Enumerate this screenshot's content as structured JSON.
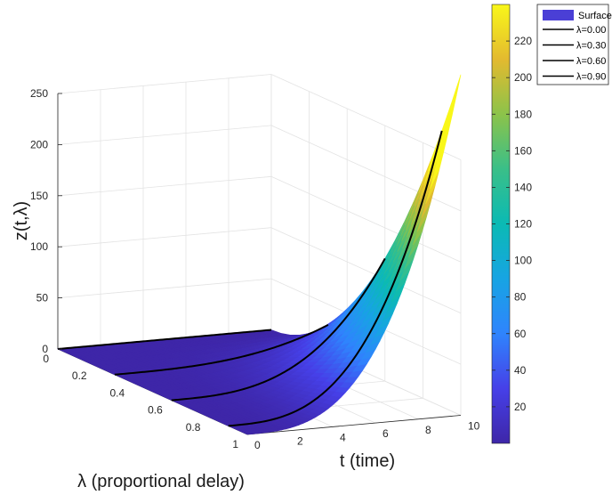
{
  "chart_data": {
    "type": "surface",
    "xlabel": "t (time)",
    "ylabel": "λ (proportional delay)",
    "zlabel": "z(t,λ)",
    "xlim": [
      0,
      10
    ],
    "ylim": [
      0,
      1
    ],
    "zlim": [
      0,
      250
    ],
    "x_ticks": [
      "0",
      "2",
      "4",
      "6",
      "8",
      "10"
    ],
    "y_ticks": [
      "0",
      "0.2",
      "0.4",
      "0.6",
      "0.8",
      "1"
    ],
    "z_ticks": [
      "0",
      "50",
      "100",
      "150",
      "200",
      "250"
    ],
    "surface_function": "z = λ² · t³ / 3",
    "grid": true,
    "colormap": "parula",
    "colorbar": {
      "min": 0,
      "max": 240,
      "ticks": [
        "20",
        "40",
        "60",
        "80",
        "100",
        "120",
        "140",
        "160",
        "180",
        "200",
        "220"
      ]
    },
    "series": [
      {
        "name": "λ=0.00",
        "lambda": 0.0,
        "color": "#000000"
      },
      {
        "name": "λ=0.30",
        "lambda": 0.3,
        "color": "#000000"
      },
      {
        "name": "λ=0.60",
        "lambda": 0.6,
        "color": "#000000"
      },
      {
        "name": "λ=0.90",
        "lambda": 0.9,
        "color": "#000000"
      }
    ],
    "legend": {
      "position": "top-right",
      "surface_label": "Surface",
      "surface_color": "#4a3fd6"
    }
  }
}
